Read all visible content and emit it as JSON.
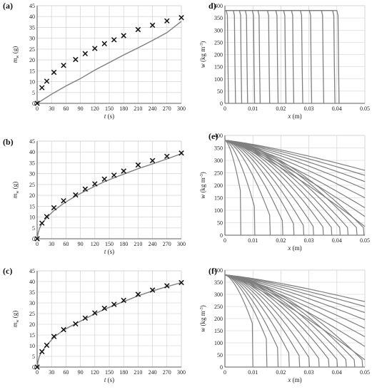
{
  "colors": {
    "line": "#7f7f7f",
    "marker": "#111111",
    "grid": "#cccccc"
  },
  "chart_data": [
    {
      "panel": "(a)",
      "type": "scatter",
      "xlabel": "t (s)",
      "ylabel_main": "m",
      "ylabel_sub": "w",
      "ylabel_unit": " (g)",
      "xlim": [
        0,
        300
      ],
      "ylim": [
        0,
        45
      ],
      "xticks": [
        0,
        30,
        60,
        90,
        120,
        150,
        180,
        210,
        240,
        270,
        300
      ],
      "yticks": [
        0,
        5,
        10,
        15,
        20,
        25,
        30,
        35,
        40,
        45
      ],
      "markers": {
        "x": [
          0,
          10,
          20,
          35,
          55,
          80,
          100,
          120,
          140,
          160,
          180,
          210,
          240,
          270,
          300
        ],
        "y": [
          0,
          7.2,
          10.2,
          14.3,
          17.5,
          20.2,
          22.9,
          25.3,
          27.5,
          29.3,
          31.2,
          34.0,
          36.0,
          38.0,
          39.5
        ]
      },
      "line": {
        "x": [
          0,
          30,
          60,
          90,
          120,
          150,
          180,
          210,
          240,
          270,
          300
        ],
        "y": [
          0,
          4.2,
          8.0,
          11.4,
          15.3,
          18.8,
          22.3,
          25.6,
          29.0,
          32.6,
          37.8
        ]
      }
    },
    {
      "panel": "(b)",
      "type": "scatter",
      "xlabel": "t (s)",
      "ylabel_main": "m",
      "ylabel_sub": "w",
      "ylabel_unit": " (g)",
      "xlim": [
        0,
        300
      ],
      "ylim": [
        0,
        45
      ],
      "xticks": [
        0,
        30,
        60,
        90,
        120,
        150,
        180,
        210,
        240,
        270,
        300
      ],
      "yticks": [
        0,
        5,
        10,
        15,
        20,
        25,
        30,
        35,
        40,
        45
      ],
      "markers": {
        "x": [
          0,
          10,
          20,
          35,
          55,
          80,
          100,
          120,
          140,
          160,
          180,
          210,
          240,
          270,
          300
        ],
        "y": [
          0,
          7.2,
          10.2,
          14.3,
          17.5,
          20.2,
          22.9,
          25.3,
          27.5,
          29.3,
          31.2,
          34.0,
          36.0,
          38.0,
          39.5
        ]
      },
      "line": {
        "x": [
          0,
          2,
          5,
          10,
          20,
          35,
          55,
          80,
          100,
          120,
          140,
          160,
          180,
          210,
          240,
          270,
          300
        ],
        "y": [
          0,
          2.5,
          4.8,
          7.0,
          9.8,
          13.0,
          16.3,
          19.7,
          22.0,
          24.2,
          26.3,
          28.1,
          29.8,
          32.3,
          34.5,
          36.8,
          39.2
        ]
      }
    },
    {
      "panel": "(c)",
      "type": "scatter",
      "xlabel": "t (s)",
      "ylabel_main": "m",
      "ylabel_sub": "w",
      "ylabel_unit": " (g)",
      "xlim": [
        0,
        300
      ],
      "ylim": [
        0,
        45
      ],
      "xticks": [
        0,
        30,
        60,
        90,
        120,
        150,
        180,
        210,
        240,
        270,
        300
      ],
      "yticks": [
        0,
        5,
        10,
        15,
        20,
        25,
        30,
        35,
        40,
        45
      ],
      "markers": {
        "x": [
          0,
          10,
          20,
          35,
          55,
          80,
          100,
          120,
          140,
          160,
          180,
          210,
          240,
          270,
          300
        ],
        "y": [
          0,
          7.2,
          10.2,
          14.3,
          17.5,
          20.2,
          22.9,
          25.3,
          27.5,
          29.3,
          31.2,
          34.0,
          36.0,
          38.0,
          39.5
        ]
      },
      "line": {
        "x": [
          0,
          2,
          5,
          10,
          20,
          35,
          55,
          80,
          100,
          120,
          140,
          160,
          180,
          210,
          240,
          270,
          300
        ],
        "y": [
          0,
          2.8,
          5.2,
          7.3,
          10.2,
          14.0,
          17.3,
          20.3,
          22.6,
          24.9,
          27.0,
          28.9,
          30.6,
          33.3,
          35.6,
          37.6,
          39.5
        ]
      }
    },
    {
      "panel": "d)",
      "type": "line",
      "profile": "front",
      "xlabel": "x (m)",
      "ylabel_main": "w",
      "ylabel_unit": " (kg m",
      "ylabel_sup": "-3",
      "ylabel_close": ")",
      "xlim": [
        0,
        0.05
      ],
      "ylim": [
        0,
        400
      ],
      "xticks": [
        0,
        0.01,
        0.02,
        0.03,
        0.04,
        0.05
      ],
      "xticklabels": [
        "0",
        "0.01",
        "0.02",
        "0.03",
        "0.04",
        "0.05"
      ],
      "yticks": [
        0,
        50,
        100,
        150,
        200,
        250,
        300,
        350,
        400
      ],
      "top": 380,
      "fronts": [
        0.0005,
        0.003,
        0.0052,
        0.0073,
        0.0098,
        0.0118,
        0.0152,
        0.0182,
        0.021,
        0.0238,
        0.027,
        0.0302,
        0.0345,
        0.0385,
        0.04
      ]
    },
    {
      "panel": "(e)",
      "type": "line",
      "profile": "decay",
      "xlabel": "x (m)",
      "ylabel_main": "w",
      "ylabel_unit": " (kg m",
      "ylabel_sup": "-3",
      "ylabel_close": ")",
      "xlim": [
        0,
        0.05
      ],
      "ylim": [
        0,
        400
      ],
      "xticks": [
        0,
        0.01,
        0.02,
        0.03,
        0.04,
        0.05
      ],
      "xticklabels": [
        "0",
        "0.01",
        "0.02",
        "0.03",
        "0.04",
        "0.05"
      ],
      "yticks": [
        0,
        50,
        100,
        150,
        200,
        250,
        300,
        350,
        400
      ],
      "top": 380,
      "fronts": [
        0.0055,
        0.0105,
        0.016,
        0.0205,
        0.0245,
        0.028,
        0.0315,
        0.035,
        0.038,
        0.041,
        0.0438,
        0.047,
        0.0495
      ],
      "tails": [
        35,
        75,
        110,
        150,
        185,
        215,
        240,
        260
      ]
    },
    {
      "panel": "(f)",
      "type": "line",
      "profile": "decay",
      "xlabel": "x (m)",
      "ylabel_main": "w",
      "ylabel_unit": " (kg m",
      "ylabel_sup": "-3",
      "ylabel_close": ")",
      "xlim": [
        0,
        0.05
      ],
      "ylim": [
        0,
        400
      ],
      "xticks": [
        0,
        0.01,
        0.02,
        0.03,
        0.04,
        0.05
      ],
      "xticklabels": [
        "0",
        "0.01",
        "0.02",
        "0.03",
        "0.04",
        "0.05"
      ],
      "yticks": [
        0,
        50,
        100,
        150,
        200,
        250,
        300,
        350,
        400
      ],
      "top": 380,
      "fronts": [
        0.0098,
        0.0148,
        0.0188,
        0.0228,
        0.0265,
        0.03,
        0.0335,
        0.037,
        0.04,
        0.0432,
        0.0462,
        0.049
      ],
      "tails": [
        30,
        85,
        125,
        160,
        195,
        225,
        250,
        270
      ]
    }
  ]
}
